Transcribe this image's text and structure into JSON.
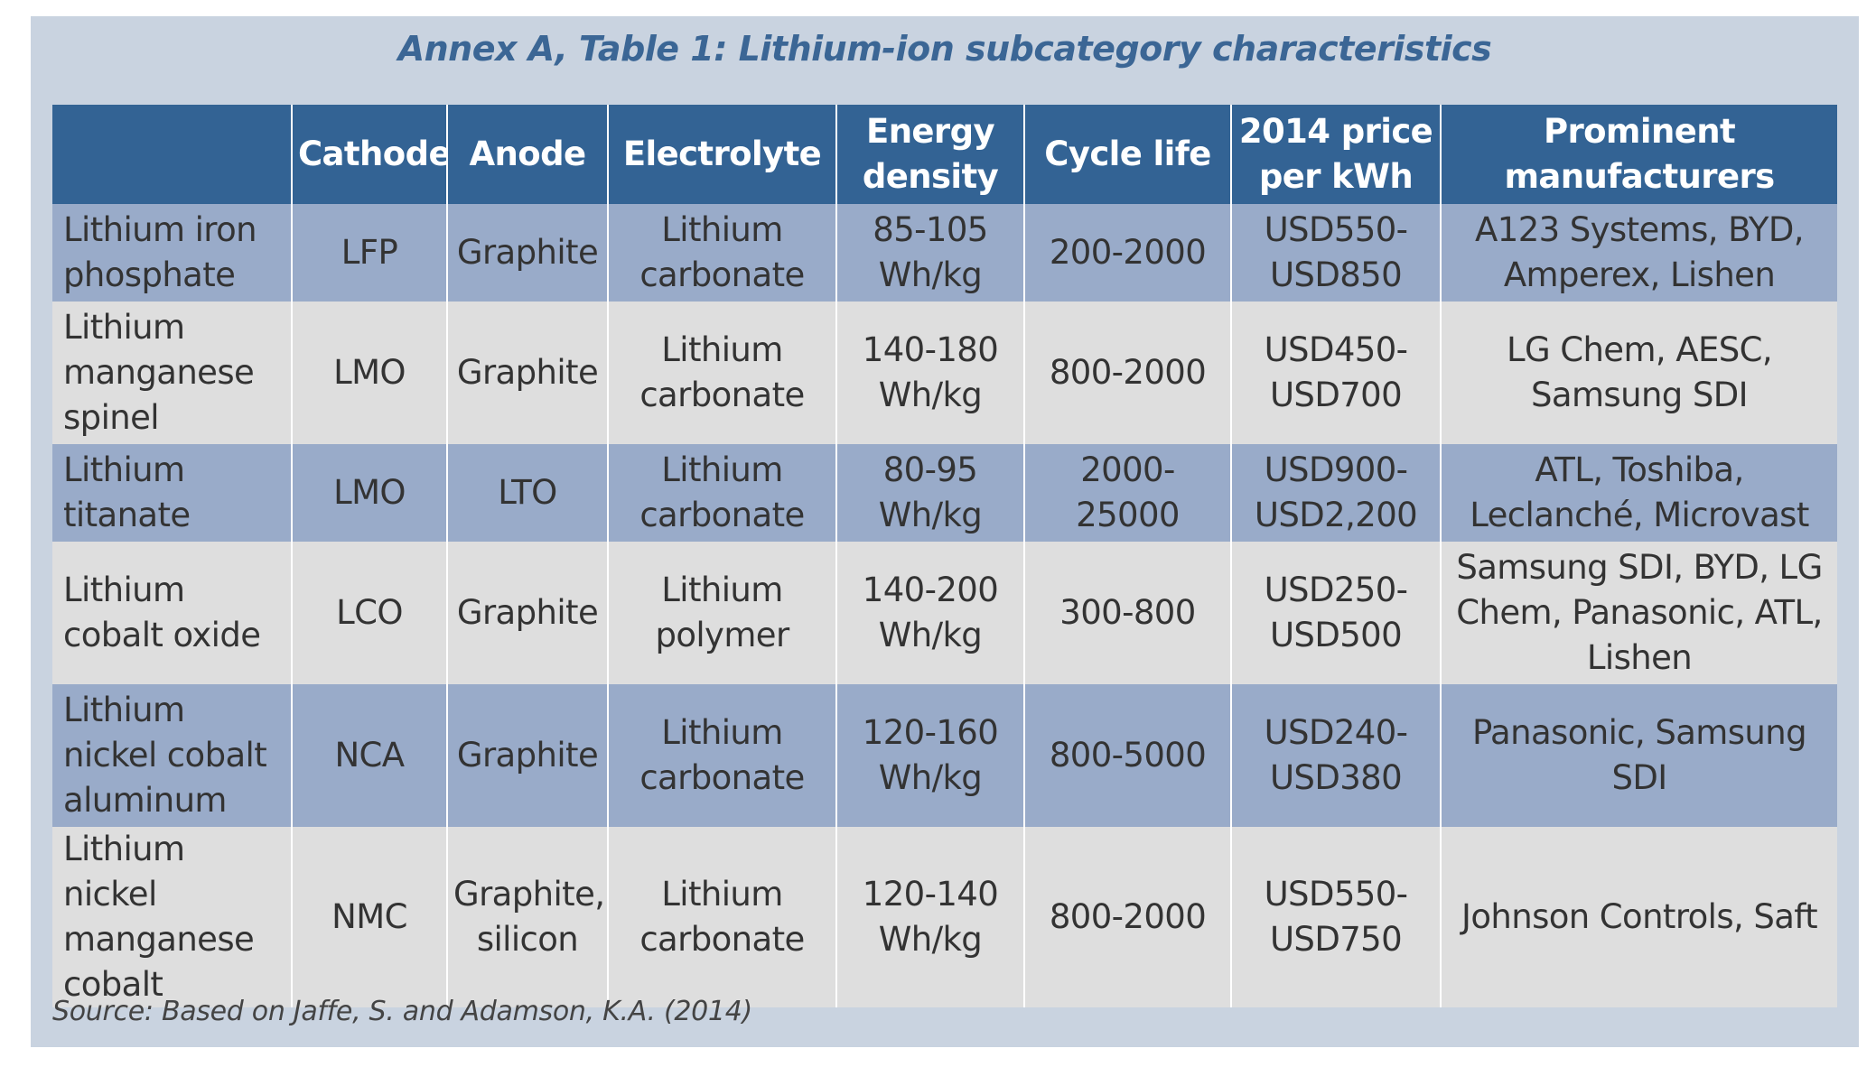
{
  "title": "Annex A, Table 1: Lithium-ion subcategory characteristics",
  "table": {
    "headers": [
      "",
      "Cathode",
      "Anode",
      "Electrolyte",
      "Energy density",
      "Cycle life",
      "2014 price per kWh",
      "Prominent manufacturers"
    ],
    "rows": [
      [
        "Lithium iron phosphate",
        "LFP",
        "Graphite",
        "Lithium carbonate",
        "85-105 Wh/kg",
        "200-2000",
        "USD550-USD850",
        "A123 Systems, BYD, Amperex, Lishen"
      ],
      [
        "Lithium manganese spinel",
        "LMO",
        "Graphite",
        "Lithium carbonate",
        "140-180 Wh/kg",
        "800-2000",
        "USD450-USD700",
        "LG Chem, AESC, Samsung SDI"
      ],
      [
        "Lithium titanate",
        "LMO",
        "LTO",
        "Lithium carbonate",
        "80-95 Wh/kg",
        "2000-25000",
        "USD900-USD2,200",
        "ATL, Toshiba, Leclanché, Microvast"
      ],
      [
        "Lithium cobalt oxide",
        "LCO",
        "Graphite",
        "Lithium polymer",
        "140-200 Wh/kg",
        "300-800",
        "USD250-USD500",
        "Samsung SDI, BYD, LG Chem, Panasonic, ATL, Lishen"
      ],
      [
        "Lithium nickel cobalt aluminum",
        "NCA",
        "Graphite",
        "Lithium carbonate",
        "120-160 Wh/kg",
        "800-5000",
        "USD240-USD380",
        "Panasonic, Samsung SDI"
      ],
      [
        "Lithium nickel manganese cobalt",
        "NMC",
        "Graphite, silicon",
        "Lithium carbonate",
        "120-140 Wh/kg",
        "800-2000",
        "USD550-USD750",
        "Johnson Controls, Saft"
      ]
    ]
  },
  "source": "Source: Based on Jaffe, S. and Adamson, K.A. (2014)",
  "colors": {
    "panel_background": "#c9d3e0",
    "title": "#3b6695",
    "header_background": "#336394",
    "row_dark": "#99abc9",
    "row_light": "#dedede"
  }
}
